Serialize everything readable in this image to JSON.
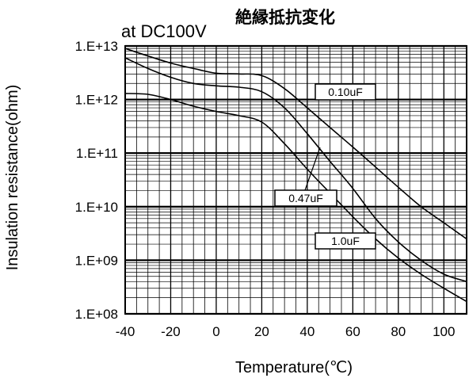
{
  "chart_data": {
    "type": "line",
    "title": "絶縁抵抗変化",
    "subtitle": "at DC100V",
    "xlabel": "Temperature(℃)",
    "ylabel": "Insulation resistance(ohm)",
    "x_scale": "linear",
    "y_scale": "log",
    "xlim": [
      -40,
      110
    ],
    "ylim": [
      100000000.0,
      10000000000000.0
    ],
    "x_ticks": [
      -40,
      -20,
      0,
      20,
      40,
      60,
      80,
      100
    ],
    "x_tick_labels": [
      "-40",
      "-20",
      "0",
      "20",
      "40",
      "60",
      "80",
      "100"
    ],
    "y_ticks": [
      100000000.0,
      1000000000.0,
      10000000000.0,
      100000000000.0,
      1000000000000.0,
      10000000000000.0
    ],
    "y_tick_labels": [
      "1.E+08",
      "1.E+09",
      "1.E+10",
      "1.E+11",
      "1.E+12",
      "1.E+13"
    ],
    "grid": true,
    "series": [
      {
        "name": "0.10uF",
        "x": [
          -40,
          -30,
          -20,
          -10,
          0,
          10,
          20,
          30,
          40,
          50,
          60,
          70,
          80,
          90,
          100,
          110
        ],
        "y": [
          9000000000000.0,
          6500000000000.0,
          4800000000000.0,
          3800000000000.0,
          3100000000000.0,
          3000000000000.0,
          2800000000000.0,
          1600000000000.0,
          700000000000.0,
          300000000000.0,
          130000000000.0,
          55000000000.0,
          23000000000.0,
          10000000000.0,
          5000000000.0,
          2500000000.0
        ]
      },
      {
        "name": "0.47uF",
        "x": [
          -40,
          -30,
          -20,
          -10,
          0,
          10,
          20,
          30,
          40,
          50,
          60,
          70,
          80,
          90,
          100,
          110
        ],
        "y": [
          6000000000000.0,
          3800000000000.0,
          2600000000000.0,
          2000000000000.0,
          1800000000000.0,
          1700000000000.0,
          1400000000000.0,
          700000000000.0,
          230000000000.0,
          70000000000.0,
          22000000000.0,
          6000000000.0,
          2200000000.0,
          1000000000.0,
          550000000.0,
          400000000.0
        ]
      },
      {
        "name": "1.0uF",
        "x": [
          -40,
          -30,
          -20,
          -10,
          0,
          10,
          20,
          30,
          40,
          50,
          60,
          70,
          80,
          90,
          100,
          110
        ],
        "y": [
          1300000000000.0,
          1250000000000.0,
          1000000000000.0,
          750000000000.0,
          600000000000.0,
          500000000000.0,
          380000000000.0,
          150000000000.0,
          50000000000.0,
          18000000000.0,
          6500000000.0,
          2500000000.0,
          1100000000.0,
          550000000.0,
          300000000.0,
          170000000.0
        ]
      }
    ],
    "annotations": [
      {
        "text": "0.10uF",
        "series": "0.10uF"
      },
      {
        "text": "0.47uF",
        "series": "0.47uF"
      },
      {
        "text": "1.0uF",
        "series": "1.0uF"
      }
    ]
  }
}
